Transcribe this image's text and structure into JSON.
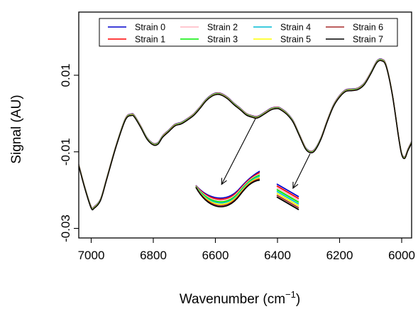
{
  "chart_data": {
    "type": "line",
    "xlabel": "Wavenumber (cm",
    "xlabel_sup": "−1",
    "xlabel_end": ")",
    "ylabel": "Signal (AU)",
    "x_reversed": true,
    "xlim": [
      7040,
      5968
    ],
    "ylim": [
      -0.0325,
      0.0265
    ],
    "x_ticks": [
      7000,
      6800,
      6600,
      6400,
      6200,
      6000
    ],
    "x_tick_labels": [
      "7000",
      "6800",
      "6600",
      "6400",
      "6200",
      "6000"
    ],
    "y_ticks": [
      -0.03,
      -0.01,
      0.01
    ],
    "y_tick_labels": [
      "-0.03",
      "-0.01",
      "0.01"
    ],
    "legend_position": "top-center",
    "series": [
      {
        "name": "Strain 0",
        "color": "#0000cc"
      },
      {
        "name": "Strain 1",
        "color": "#ff0000"
      },
      {
        "name": "Strain 2",
        "color": "#ffb6c1"
      },
      {
        "name": "Strain 3",
        "color": "#00ee00"
      },
      {
        "name": "Strain 4",
        "color": "#00bcd4"
      },
      {
        "name": "Strain 5",
        "color": "#ffff00"
      },
      {
        "name": "Strain 6",
        "color": "#a52a2a"
      },
      {
        "name": "Strain 7",
        "color": "#000000"
      }
    ],
    "spectrum": {
      "x": [
        7040,
        7020,
        7000,
        6990,
        6970,
        6950,
        6920,
        6890,
        6870,
        6860,
        6840,
        6820,
        6800,
        6785,
        6770,
        6750,
        6730,
        6710,
        6690,
        6670,
        6650,
        6630,
        6610,
        6595,
        6580,
        6560,
        6540,
        6520,
        6500,
        6480,
        6470,
        6460,
        6440,
        6420,
        6400,
        6390,
        6370,
        6350,
        6330,
        6310,
        6295,
        6280,
        6260,
        6240,
        6220,
        6200,
        6180,
        6160,
        6140,
        6120,
        6100,
        6080,
        6065,
        6050,
        6030,
        6010,
        6000,
        5990,
        5980,
        5968
      ],
      "y": [
        -0.0135,
        -0.0195,
        -0.0245,
        -0.0245,
        -0.0225,
        -0.017,
        -0.0085,
        -0.0015,
        -0.0003,
        -0.0008,
        -0.0035,
        -0.0065,
        -0.008,
        -0.0078,
        -0.006,
        -0.0045,
        -0.003,
        -0.0025,
        -0.0015,
        -0.0003,
        0.0015,
        0.0035,
        0.0048,
        0.0052,
        0.005,
        0.004,
        0.0025,
        0.0012,
        -0.0002,
        -0.0008,
        -0.001,
        -0.0008,
        0.0002,
        0.0012,
        0.0015,
        0.0012,
        0.0,
        -0.002,
        -0.0055,
        -0.009,
        -0.01,
        -0.0095,
        -0.0065,
        -0.002,
        0.002,
        0.0045,
        0.006,
        0.0062,
        0.0065,
        0.0078,
        0.0105,
        0.0135,
        0.014,
        0.0125,
        0.005,
        -0.006,
        -0.0105,
        -0.0115,
        -0.0095,
        -0.0075
      ]
    },
    "annotations": [
      {
        "type": "arrow",
        "from_x": 6470,
        "from_y": -0.0012,
        "to_x": 6580,
        "to_y": -0.0185
      },
      {
        "type": "arrow",
        "from_x": 6295,
        "from_y": -0.0105,
        "to_x": 6350,
        "to_y": -0.0195
      }
    ]
  }
}
